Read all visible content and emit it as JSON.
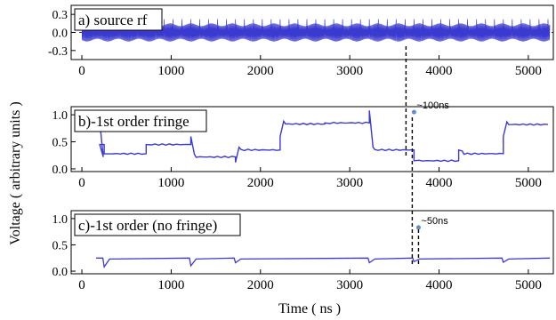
{
  "chart_data": {
    "type": "line",
    "xlabel": "Time  ( ns )",
    "ylabel": "Voltage  ( arbitrary   units )",
    "xlim": [
      -120,
      5280
    ],
    "x_ticks": [
      "0",
      "1000",
      "2000",
      "3000",
      "4000",
      "5000"
    ],
    "colors": {
      "trace": "#3a3ad0",
      "annotation": "#5a8fc9"
    },
    "panels": [
      {
        "label": "a) source rf",
        "ylim": [
          -0.45,
          0.45
        ],
        "y_ticks": [
          "0.3",
          "0.0",
          "-0.3"
        ],
        "signal": "rf burst oscillation",
        "amplitude": 0.15,
        "spike_amplitude": 0.22
      },
      {
        "label": "b)-1st order fringe",
        "ylim": [
          -0.05,
          1.15
        ],
        "y_ticks": [
          "1.0",
          "0.5",
          "0.0"
        ],
        "levels": [
          {
            "x0": 200,
            "x1": 250,
            "v": 0.45
          },
          {
            "x0": 250,
            "x1": 720,
            "v": 0.28
          },
          {
            "x0": 720,
            "x1": 1220,
            "v": 0.45
          },
          {
            "x0": 1220,
            "x1": 1720,
            "v": 0.22
          },
          {
            "x0": 1720,
            "x1": 2220,
            "v": 0.35
          },
          {
            "x0": 2220,
            "x1": 2720,
            "v": 0.83
          },
          {
            "x0": 2720,
            "x1": 3220,
            "v": 0.85
          },
          {
            "x0": 3220,
            "x1": 3720,
            "v": 0.35
          },
          {
            "x0": 3720,
            "x1": 4220,
            "v": 0.15
          },
          {
            "x0": 4220,
            "x1": 4720,
            "v": 0.28
          },
          {
            "x0": 4720,
            "x1": 5220,
            "v": 0.82
          }
        ],
        "spikes": [
          {
            "x": 1220,
            "v": 0.6
          },
          {
            "x": 1720,
            "v": 0.12
          },
          {
            "x": 2220,
            "v": 0.6
          },
          {
            "x": 3220,
            "v": 1.08
          },
          {
            "x": 4220,
            "v": 0.35
          },
          {
            "x": 4720,
            "v": 0.6
          }
        ],
        "annotation": {
          "text": "~100ns",
          "x": 3720,
          "v": 1.05
        }
      },
      {
        "label": "c)-1st order (no fringe)",
        "ylim": [
          -0.05,
          1.15
        ],
        "y_ticks": [
          "1.0",
          "0.5",
          "0.0"
        ],
        "baseline": 0.25,
        "dips": [
          {
            "x": 250,
            "v": 0.08
          },
          {
            "x": 1220,
            "v": 0.1
          },
          {
            "x": 1720,
            "v": 0.16
          },
          {
            "x": 3220,
            "v": 0.16
          },
          {
            "x": 3720,
            "v": 0.18
          },
          {
            "x": 4720,
            "v": 0.17
          }
        ],
        "annotation": {
          "text": "~50ns",
          "x": 3770,
          "v": 0.83
        }
      }
    ],
    "markers": [
      {
        "x": 3630,
        "panels": "a-b"
      },
      {
        "x": 3700,
        "panels": "b-c"
      },
      {
        "x": 3770,
        "panels": "c"
      }
    ]
  }
}
